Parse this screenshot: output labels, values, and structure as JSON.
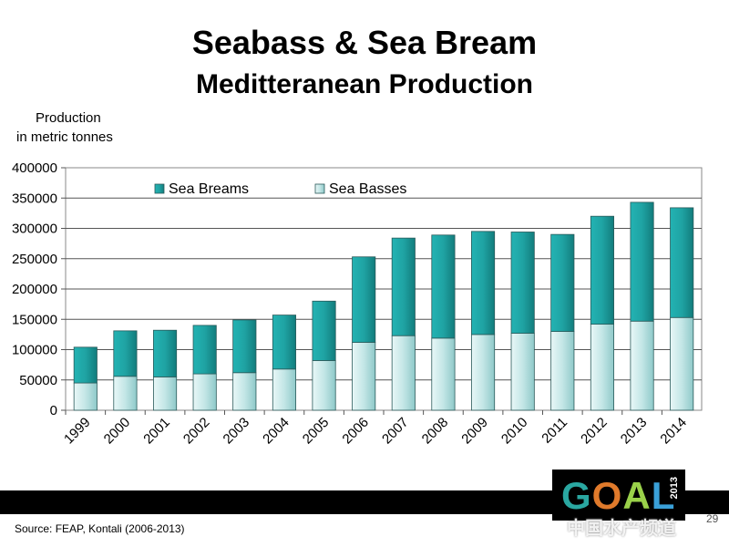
{
  "slide": {
    "title": "Seabass & Sea Bream",
    "subtitle": "Meditteranean Production",
    "source": "Source: FEAP, Kontali (2006-2013)",
    "page_number": "29",
    "watermark": "中国水产频道",
    "logo": {
      "text": "GOAL",
      "year": "2013",
      "colors": [
        "#2aa7a1",
        "#e07a2b",
        "#9ad14a",
        "#3aa0d8"
      ]
    }
  },
  "chart_data": {
    "type": "bar",
    "stacked": true,
    "ylabel": [
      "Production",
      "in metric tonnes"
    ],
    "categories": [
      "1999",
      "2000",
      "2001",
      "2002",
      "2003",
      "2004",
      "2005",
      "2006",
      "2007",
      "2008",
      "2009",
      "2010",
      "2011",
      "2012",
      "2013",
      "2014"
    ],
    "series": [
      {
        "name": "Sea Basses",
        "color": "#c3e6e6",
        "values": [
          45000,
          56000,
          55000,
          60000,
          62000,
          68000,
          82000,
          112000,
          123000,
          119000,
          125000,
          127000,
          130000,
          142000,
          147000,
          153000
        ]
      },
      {
        "name": "Sea Breams",
        "color": "#1fa3a3",
        "values": [
          59000,
          75000,
          77000,
          80000,
          87000,
          89000,
          98000,
          141000,
          161000,
          170000,
          170000,
          167000,
          160000,
          178000,
          196000,
          181000
        ]
      }
    ],
    "legend_order": [
      "Sea Breams",
      "Sea Basses"
    ],
    "ylim": [
      0,
      400000
    ],
    "yticks": [
      "0",
      "50000",
      "100000",
      "150000",
      "200000",
      "250000",
      "300000",
      "350000",
      "400000"
    ],
    "grid": true,
    "legend_position": "top"
  }
}
